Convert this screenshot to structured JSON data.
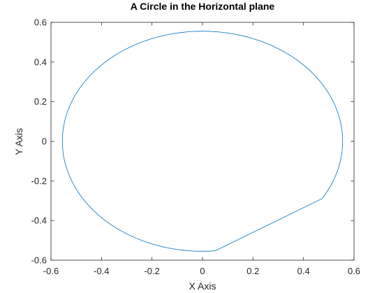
{
  "chart_data": {
    "type": "line",
    "title": "A Circle in the Horizontal plane",
    "xlabel": "X Axis",
    "ylabel": "Y Axis",
    "xlim": [
      -0.6,
      0.6
    ],
    "ylim": [
      -0.6,
      0.6
    ],
    "xticks": [
      -0.6,
      -0.4,
      -0.2,
      0,
      0.2,
      0.4,
      0.6
    ],
    "yticks": [
      -0.6,
      -0.4,
      -0.2,
      0,
      0.2,
      0.4,
      0.6
    ],
    "xtick_labels": [
      "-0.6",
      "-0.4",
      "-0.2",
      "0",
      "0.2",
      "0.4",
      "0.6"
    ],
    "ytick_labels": [
      "-0.6",
      "-0.4",
      "-0.2",
      "0",
      "0.2",
      "0.4",
      "0.6"
    ],
    "grid": false,
    "series": [
      {
        "color": "#0072bd",
        "circle_center": [
          0,
          0
        ],
        "circle_radius": 0.555,
        "arc_start_point": [
          0.05,
          -0.553
        ],
        "arc_end_point": [
          0.475,
          -0.29
        ],
        "arc_direction": "clockwise",
        "closing_segment": [
          [
            0.475,
            -0.29
          ],
          [
            0.05,
            -0.553
          ]
        ]
      }
    ]
  }
}
